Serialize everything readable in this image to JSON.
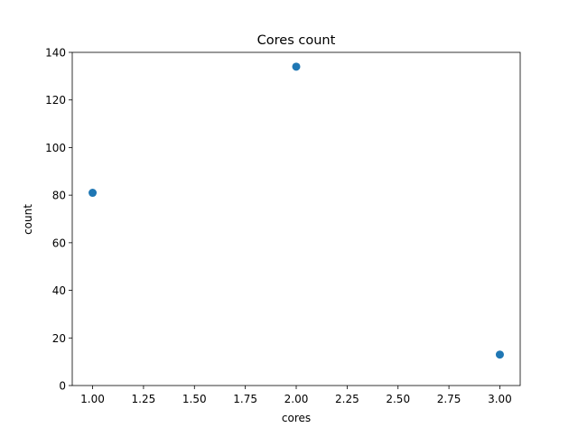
{
  "chart_data": {
    "type": "scatter",
    "title": "Cores count",
    "xlabel": "cores",
    "ylabel": "count",
    "x": [
      1,
      2,
      3
    ],
    "y": [
      81,
      134,
      13
    ],
    "xlim": [
      0.9,
      3.1
    ],
    "ylim": [
      0,
      140
    ],
    "xticks": [
      1.0,
      1.25,
      1.5,
      1.75,
      2.0,
      2.25,
      2.5,
      2.75,
      3.0
    ],
    "xtick_labels": [
      "1.00",
      "1.25",
      "1.50",
      "1.75",
      "2.00",
      "2.25",
      "2.50",
      "2.75",
      "3.00"
    ],
    "yticks": [
      0,
      20,
      40,
      60,
      80,
      100,
      120,
      140
    ],
    "ytick_labels": [
      "0",
      "20",
      "40",
      "60",
      "80",
      "100",
      "120",
      "140"
    ],
    "grid": false,
    "marker_color": "#1f77b4"
  }
}
